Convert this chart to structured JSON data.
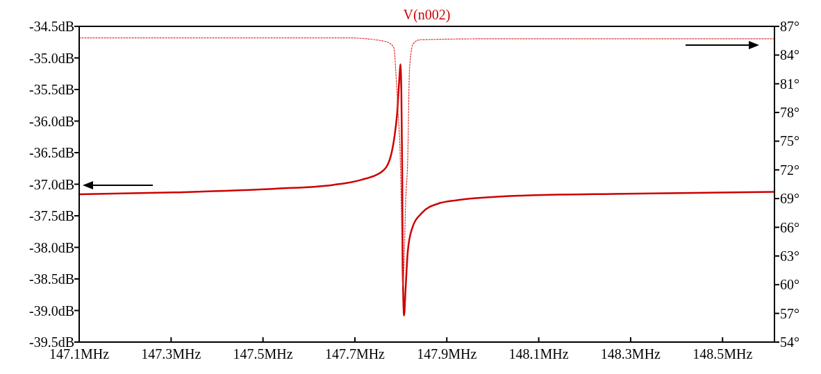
{
  "chart_data": {
    "type": "line",
    "title": "V(n002)",
    "xlim": [
      147.1,
      148.613
    ],
    "xticks": [
      {
        "value": 147.1,
        "label": "147.1MHz"
      },
      {
        "value": 147.3,
        "label": "147.3MHz"
      },
      {
        "value": 147.5,
        "label": "147.5MHz"
      },
      {
        "value": 147.7,
        "label": "147.7MHz"
      },
      {
        "value": 147.9,
        "label": "147.9MHz"
      },
      {
        "value": 148.1,
        "label": "148.1MHz"
      },
      {
        "value": 148.3,
        "label": "148.3MHz"
      },
      {
        "value": 148.5,
        "label": "148.5MHz"
      }
    ],
    "ylim": [
      -39.5,
      -34.5
    ],
    "yticks": [
      {
        "value": -34.5,
        "label": "-34.5dB"
      },
      {
        "value": -35,
        "label": "-35.0dB"
      },
      {
        "value": -35.5,
        "label": "-35.5dB"
      },
      {
        "value": -36,
        "label": "-36.0dB"
      },
      {
        "value": -36.5,
        "label": "-36.5dB"
      },
      {
        "value": -37,
        "label": "-37.0dB"
      },
      {
        "value": -37.5,
        "label": "-37.5dB"
      },
      {
        "value": -38,
        "label": "-38.0dB"
      },
      {
        "value": -38.5,
        "label": "-38.5dB"
      },
      {
        "value": -39,
        "label": "-39.0dB"
      },
      {
        "value": -39.5,
        "label": "-39.5dB"
      }
    ],
    "y2lim": [
      54,
      87
    ],
    "y2ticks": [
      {
        "value": 54,
        "label": "54°"
      },
      {
        "value": 57,
        "label": "57°"
      },
      {
        "value": 60,
        "label": "60°"
      },
      {
        "value": 63,
        "label": "63°"
      },
      {
        "value": 66,
        "label": "66°"
      },
      {
        "value": 69,
        "label": "69°"
      },
      {
        "value": 72,
        "label": "72°"
      },
      {
        "value": 75,
        "label": "75°"
      },
      {
        "value": 78,
        "label": "78°"
      },
      {
        "value": 81,
        "label": "81°"
      },
      {
        "value": 84,
        "label": "84°"
      },
      {
        "value": 87,
        "label": "87°"
      }
    ],
    "grid": false,
    "series": [
      {
        "color": "#cc0000",
        "line_style": "solid",
        "x": [
          147.1,
          147.306,
          147.532,
          147.653,
          147.714,
          147.759,
          147.777,
          147.786,
          147.792,
          147.797,
          147.799,
          147.801,
          147.803,
          147.804,
          147.807,
          147.81,
          147.815,
          147.824,
          147.845,
          147.884,
          147.925,
          148.061,
          148.288,
          148.613
        ],
        "values": [
          -37.16,
          -37.13,
          -37.07,
          -37.01,
          -36.93,
          -36.8,
          -36.58,
          -36.25,
          -35.87,
          -35.29,
          -35.1,
          -35.51,
          -36.83,
          -38.26,
          -39.08,
          -38.7,
          -38.07,
          -37.71,
          -37.46,
          -37.3,
          -37.25,
          -37.18,
          -37.15,
          -37.12
        ]
      },
      {
        "color": "#e03030",
        "line_style": "dotted",
        "axis": "y2",
        "x": [
          147.1,
          147.683,
          147.744,
          147.767,
          147.777,
          147.785,
          147.789,
          147.794,
          147.798,
          147.801,
          147.804,
          147.807,
          147.81,
          147.815,
          147.819,
          147.827,
          147.842,
          147.986,
          148.613
        ],
        "values": [
          85.8,
          85.8,
          85.6,
          85.4,
          85.2,
          84.7,
          82.3,
          77.9,
          74.3,
          68.0,
          59.8,
          62.2,
          68.0,
          73.3,
          82.7,
          85.2,
          85.6,
          85.7,
          85.7
        ]
      }
    ]
  }
}
